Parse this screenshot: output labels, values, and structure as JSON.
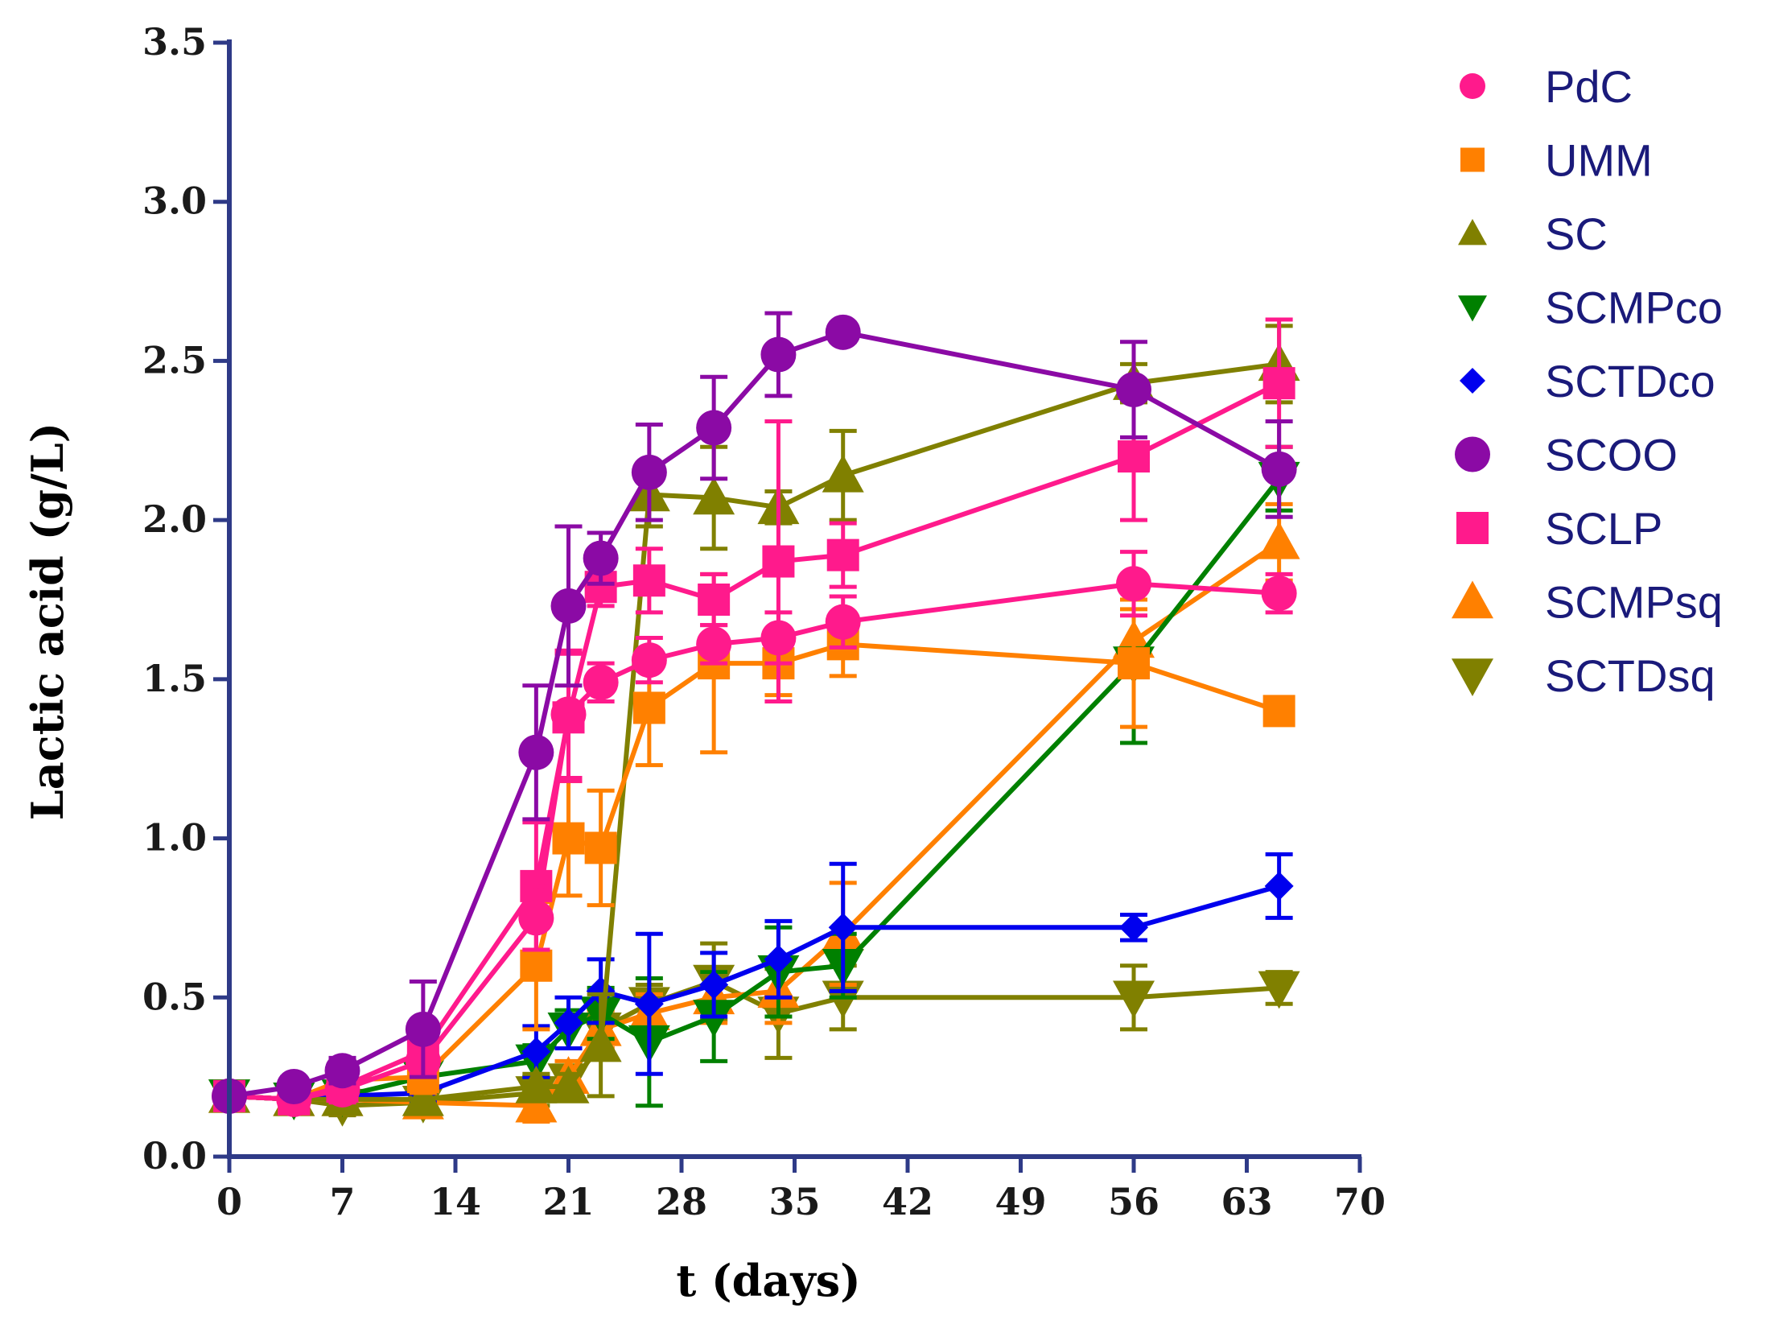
{
  "chart_data": {
    "type": "line",
    "xlabel": "t (days)",
    "ylabel": "Lactic acid (g/L)",
    "xlim": [
      0,
      70
    ],
    "ylim": [
      0,
      3.5
    ],
    "xticks": [
      0,
      7,
      14,
      21,
      28,
      35,
      42,
      49,
      56,
      63,
      70
    ],
    "yticks": [
      0.0,
      0.5,
      1.0,
      1.5,
      2.0,
      2.5,
      3.0,
      3.5
    ],
    "xtick_labels": [
      "0",
      "7",
      "14",
      "21",
      "28",
      "35",
      "42",
      "49",
      "56",
      "63",
      "70"
    ],
    "ytick_labels": [
      "0.0",
      "0.5",
      "1.0",
      "1.5",
      "2.0",
      "2.5",
      "3.0",
      "3.5"
    ],
    "axis_color": "#2e3a87",
    "legend_position": "right",
    "series": [
      {
        "name": "SCTDsq",
        "color": "#808000",
        "marker": "triangle-down",
        "x": [
          0,
          4,
          7,
          12,
          19,
          21,
          23,
          26,
          30,
          34,
          38,
          56,
          65
        ],
        "y": [
          0.19,
          0.18,
          0.16,
          0.17,
          0.2,
          0.24,
          0.4,
          0.48,
          0.55,
          0.45,
          0.5,
          0.5,
          0.53
        ],
        "err": [
          0.03,
          0.03,
          0.03,
          0.03,
          0.04,
          0.04,
          0.06,
          0.06,
          0.12,
          0.14,
          0.1,
          0.1,
          0.05
        ]
      },
      {
        "name": "SCMPsq",
        "color": "#ff8000",
        "marker": "triangle-up",
        "x": [
          0,
          4,
          7,
          12,
          19,
          21,
          23,
          26,
          30,
          34,
          38,
          56,
          65
        ],
        "y": [
          0.19,
          0.18,
          0.18,
          0.17,
          0.16,
          0.25,
          0.4,
          0.45,
          0.5,
          0.52,
          0.7,
          1.62,
          1.93
        ],
        "err": [
          0.03,
          0.03,
          0.03,
          0.03,
          0.05,
          0.05,
          0.06,
          0.06,
          0.08,
          0.1,
          0.16,
          0.1,
          0.12
        ]
      },
      {
        "name": "SCMPco",
        "color": "#008000",
        "marker": "triangle-down",
        "x": [
          0,
          4,
          7,
          12,
          19,
          21,
          23,
          26,
          30,
          34,
          38,
          56,
          65
        ],
        "y": [
          0.19,
          0.18,
          0.19,
          0.25,
          0.3,
          0.4,
          0.45,
          0.36,
          0.44,
          0.58,
          0.6,
          1.55,
          2.13
        ],
        "err": [
          0.03,
          0.03,
          0.03,
          0.04,
          0.05,
          0.06,
          0.08,
          0.2,
          0.14,
          0.14,
          0.1,
          0.25,
          0.1
        ]
      },
      {
        "name": "SCTDco",
        "color": "#0000ee",
        "marker": "diamond",
        "x": [
          0,
          4,
          7,
          12,
          19,
          21,
          23,
          26,
          30,
          34,
          38,
          56,
          65
        ],
        "y": [
          0.19,
          0.18,
          0.19,
          0.2,
          0.33,
          0.42,
          0.52,
          0.48,
          0.54,
          0.62,
          0.72,
          0.72,
          0.85
        ],
        "err": [
          0.03,
          0.03,
          0.03,
          0.03,
          0.08,
          0.08,
          0.1,
          0.22,
          0.1,
          0.12,
          0.2,
          0.04,
          0.1
        ]
      },
      {
        "name": "SC",
        "color": "#808000",
        "marker": "triangle-up",
        "x": [
          0,
          4,
          7,
          12,
          19,
          21,
          23,
          26,
          30,
          34,
          38,
          56,
          65
        ],
        "y": [
          0.19,
          0.18,
          0.18,
          0.18,
          0.22,
          0.22,
          0.35,
          2.08,
          2.07,
          2.04,
          2.14,
          2.43,
          2.49
        ],
        "err": [
          0.03,
          0.03,
          0.03,
          0.03,
          0.04,
          0.04,
          0.16,
          0.1,
          0.16,
          0.05,
          0.14,
          0.06,
          0.12
        ]
      },
      {
        "name": "UMM",
        "color": "#ff8000",
        "marker": "square",
        "x": [
          0,
          4,
          7,
          12,
          19,
          21,
          23,
          26,
          30,
          34,
          38,
          56,
          65
        ],
        "y": [
          0.19,
          0.18,
          0.24,
          0.25,
          0.6,
          1.0,
          0.97,
          1.41,
          1.55,
          1.55,
          1.61,
          1.55,
          1.4
        ],
        "err": [
          0.03,
          0.03,
          0.05,
          0.05,
          0.2,
          0.18,
          0.18,
          0.18,
          0.28,
          0.1,
          0.1,
          0.2,
          0.02
        ]
      },
      {
        "name": "SCLP",
        "color": "#ff1a8c",
        "marker": "square",
        "x": [
          0,
          4,
          7,
          12,
          19,
          21,
          23,
          26,
          30,
          34,
          38,
          56,
          65
        ],
        "y": [
          0.19,
          0.18,
          0.22,
          0.33,
          0.85,
          1.38,
          1.79,
          1.81,
          1.75,
          1.87,
          1.89,
          2.2,
          2.43
        ],
        "err": [
          0.03,
          0.03,
          0.05,
          0.05,
          0.2,
          0.2,
          0.06,
          0.1,
          0.08,
          0.44,
          0.1,
          0.2,
          0.2
        ]
      },
      {
        "name": "PdC",
        "color": "#ff1a8c",
        "marker": "circle",
        "x": [
          0,
          4,
          7,
          12,
          19,
          21,
          23,
          26,
          30,
          34,
          38,
          56,
          65
        ],
        "y": [
          0.19,
          0.18,
          0.21,
          0.3,
          0.75,
          1.39,
          1.49,
          1.56,
          1.61,
          1.63,
          1.68,
          1.8,
          1.77
        ],
        "err": [
          0.03,
          0.03,
          0.03,
          0.04,
          0.1,
          0.2,
          0.06,
          0.07,
          0.06,
          0.08,
          0.08,
          0.1,
          0.06
        ]
      },
      {
        "name": "SCOO",
        "color": "#8b0aa5",
        "marker": "circle",
        "x": [
          0,
          4,
          7,
          12,
          19,
          21,
          23,
          26,
          30,
          34,
          38,
          56,
          65
        ],
        "y": [
          0.19,
          0.22,
          0.27,
          0.4,
          1.27,
          1.73,
          1.88,
          2.15,
          2.29,
          2.52,
          2.59,
          2.41,
          2.16
        ],
        "err": [
          0.03,
          0.03,
          0.04,
          0.15,
          0.21,
          0.25,
          0.08,
          0.15,
          0.16,
          0.13,
          0.03,
          0.15,
          0.15
        ]
      }
    ],
    "legend": [
      {
        "name": "PdC",
        "color": "#ff1a8c",
        "marker": "circle-small"
      },
      {
        "name": "UMM",
        "color": "#ff8000",
        "marker": "square-small"
      },
      {
        "name": "SC",
        "color": "#808000",
        "marker": "triangle-up-small"
      },
      {
        "name": "SCMPco",
        "color": "#008000",
        "marker": "triangle-down-small"
      },
      {
        "name": "SCTDco",
        "color": "#0000ee",
        "marker": "diamond-small"
      },
      {
        "name": "SCOO",
        "color": "#8b0aa5",
        "marker": "circle"
      },
      {
        "name": "SCLP",
        "color": "#ff1a8c",
        "marker": "square"
      },
      {
        "name": "SCMPsq",
        "color": "#ff8000",
        "marker": "triangle-up"
      },
      {
        "name": "SCTDsq",
        "color": "#808000",
        "marker": "triangle-down"
      }
    ]
  }
}
